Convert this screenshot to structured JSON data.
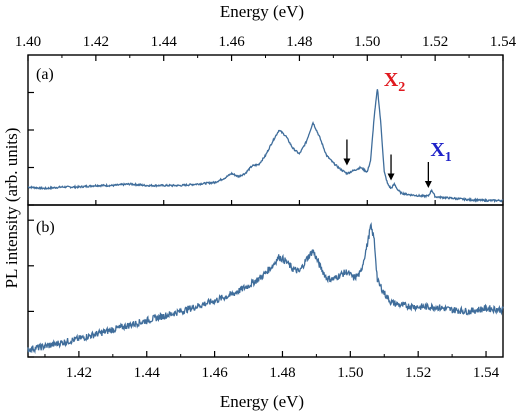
{
  "chart_data": [
    {
      "panel": "(a)",
      "type": "line",
      "xlabel": "Energy (eV)",
      "ylabel": "PL intensity (arb. units)",
      "xlim": [
        1.4,
        1.54
      ],
      "xticks": [
        "1.40",
        "1.42",
        "1.44",
        "1.46",
        "1.48",
        "1.50",
        "1.52",
        "1.54"
      ],
      "ylim": [
        0,
        1.0
      ],
      "annotations": [
        {
          "text": "X",
          "sub": "2",
          "color": "#e0191f",
          "x": 1.504
        },
        {
          "text": "X",
          "sub": "1",
          "color": "#1f22c8",
          "x": 1.518
        }
      ],
      "arrows_at_energy": [
        1.494,
        1.507,
        1.518
      ],
      "series_color": "#3f6d9b",
      "series": [
        {
          "x": [
            1.4,
            1.405,
            1.41,
            1.415,
            1.42,
            1.425,
            1.43,
            1.435,
            1.44,
            1.445,
            1.45,
            1.455,
            1.458,
            1.46,
            1.462,
            1.464,
            1.466,
            1.468,
            1.47,
            1.472,
            1.474,
            1.476,
            1.478,
            1.48,
            1.482,
            1.484,
            1.486,
            1.488,
            1.49,
            1.492,
            1.494,
            1.496,
            1.498,
            1.5,
            1.501,
            1.502,
            1.503,
            1.504,
            1.505,
            1.506,
            1.507,
            1.508,
            1.509,
            1.51,
            1.512,
            1.514,
            1.516,
            1.518,
            1.519,
            1.52,
            1.525,
            1.53,
            1.535,
            1.54
          ],
          "y": [
            0.12,
            0.11,
            0.12,
            0.12,
            0.13,
            0.13,
            0.14,
            0.13,
            0.13,
            0.13,
            0.14,
            0.15,
            0.18,
            0.21,
            0.19,
            0.21,
            0.26,
            0.27,
            0.33,
            0.42,
            0.5,
            0.46,
            0.38,
            0.34,
            0.42,
            0.55,
            0.45,
            0.33,
            0.28,
            0.24,
            0.21,
            0.23,
            0.25,
            0.22,
            0.3,
            0.58,
            0.78,
            0.54,
            0.22,
            0.14,
            0.11,
            0.14,
            0.1,
            0.08,
            0.07,
            0.065,
            0.06,
            0.06,
            0.1,
            0.055,
            0.045,
            0.035,
            0.03,
            0.03
          ]
        }
      ]
    },
    {
      "panel": "(b)",
      "type": "line",
      "xlabel": "Energy (eV)",
      "xlim": [
        1.405,
        1.545
      ],
      "xticks": [
        "1.42",
        "1.44",
        "1.46",
        "1.48",
        "1.50",
        "1.52",
        "1.54"
      ],
      "ylim": [
        0,
        1.0
      ],
      "series_color": "#3f6d9b",
      "series": [
        {
          "x": [
            1.405,
            1.41,
            1.42,
            1.43,
            1.44,
            1.45,
            1.46,
            1.465,
            1.47,
            1.474,
            1.477,
            1.479,
            1.481,
            1.483,
            1.485,
            1.487,
            1.489,
            1.491,
            1.493,
            1.495,
            1.497,
            1.499,
            1.501,
            1.503,
            1.505,
            1.506,
            1.507,
            1.508,
            1.51,
            1.512,
            1.515,
            1.52,
            1.525,
            1.53,
            1.535,
            1.54,
            1.545
          ],
          "y": [
            0.05,
            0.07,
            0.12,
            0.18,
            0.24,
            0.3,
            0.37,
            0.41,
            0.47,
            0.53,
            0.6,
            0.66,
            0.63,
            0.58,
            0.56,
            0.64,
            0.7,
            0.6,
            0.52,
            0.51,
            0.54,
            0.56,
            0.52,
            0.55,
            0.74,
            0.86,
            0.78,
            0.5,
            0.42,
            0.36,
            0.34,
            0.33,
            0.33,
            0.31,
            0.3,
            0.32,
            0.31
          ]
        }
      ]
    }
  ]
}
